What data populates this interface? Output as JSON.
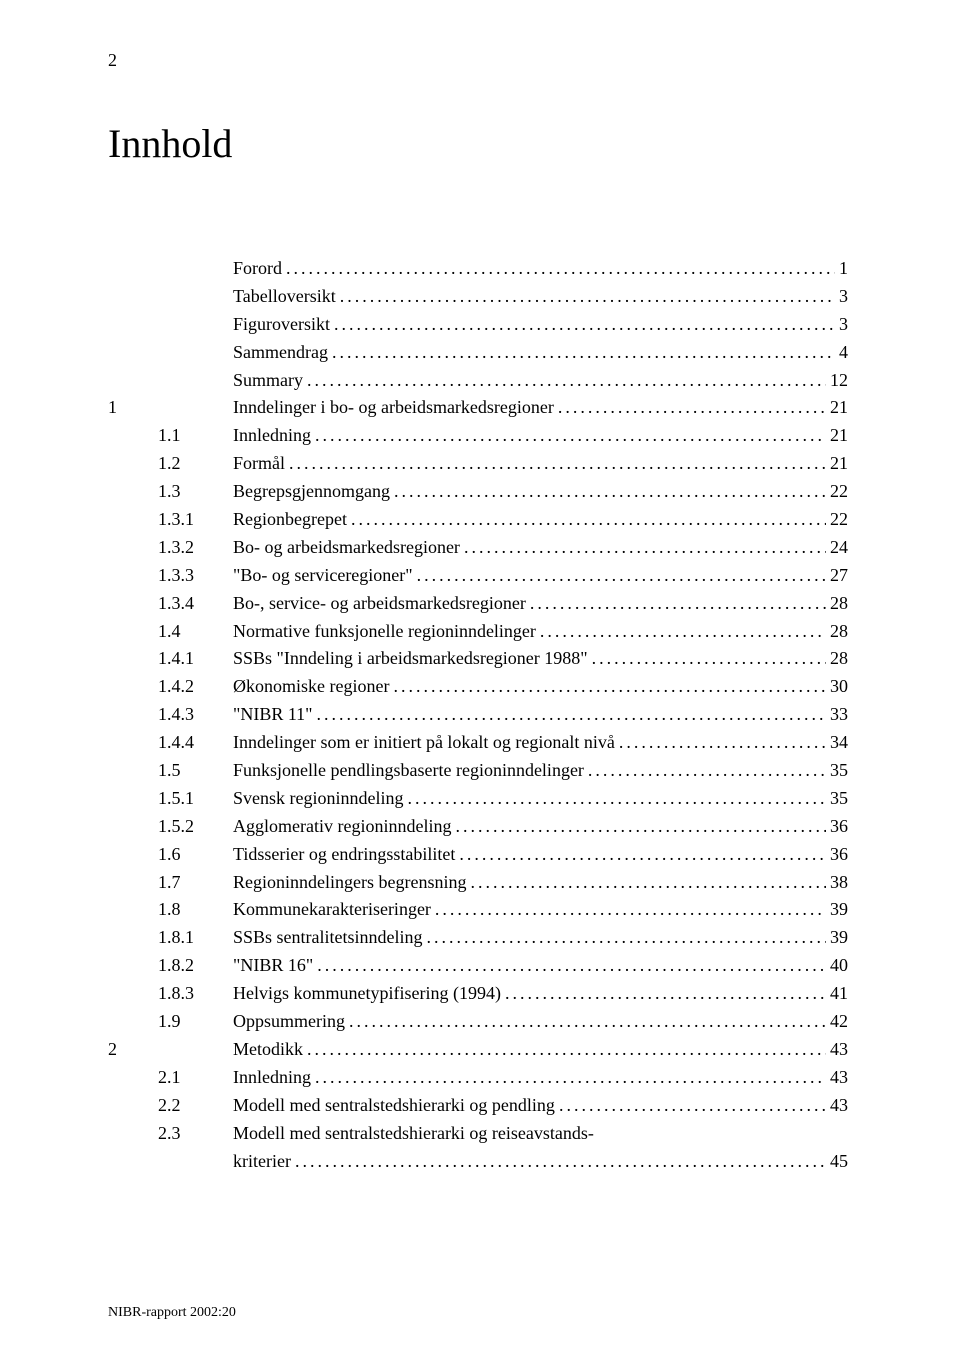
{
  "page_number_top": "2",
  "title": "Innhold",
  "footer": "NIBR-rapport 2002:20",
  "dots": "................................................................................................................",
  "toc": [
    {
      "level": 0,
      "num": "",
      "text": "Forord",
      "page": "1"
    },
    {
      "level": 0,
      "num": "",
      "text": "Tabelloversikt",
      "page": "3"
    },
    {
      "level": 0,
      "num": "",
      "text": "Figuroversikt",
      "page": "3"
    },
    {
      "level": 0,
      "num": "",
      "text": "Sammendrag",
      "page": "4"
    },
    {
      "level": 0,
      "num": "",
      "text": "Summary",
      "page": "12"
    },
    {
      "level": 1,
      "num": "1",
      "text": "Inndelinger i bo- og arbeidsmarkedsregioner",
      "page": "21"
    },
    {
      "level": 2,
      "num": "1.1",
      "text": "Innledning",
      "page": "21"
    },
    {
      "level": 2,
      "num": "1.2",
      "text": "Formål",
      "page": "21"
    },
    {
      "level": 2,
      "num": "1.3",
      "text": "Begrepsgjennomgang",
      "page": "22"
    },
    {
      "level": 3,
      "num": "1.3.1",
      "text": "Regionbegrepet",
      "page": "22"
    },
    {
      "level": 3,
      "num": "1.3.2",
      "text": "Bo- og arbeidsmarkedsregioner",
      "page": "24"
    },
    {
      "level": 3,
      "num": "1.3.3",
      "text": "\"Bo- og serviceregioner\"",
      "page": "27"
    },
    {
      "level": 3,
      "num": "1.3.4",
      "text": "Bo-, service- og arbeidsmarkedsregioner",
      "page": "28"
    },
    {
      "level": 2,
      "num": "1.4",
      "text": "Normative funksjonelle regioninndelinger",
      "page": "28"
    },
    {
      "level": 3,
      "num": "1.4.1",
      "text": "SSBs \"Inndeling i arbeidsmarkedsregioner 1988\"",
      "page": "28"
    },
    {
      "level": 3,
      "num": "1.4.2",
      "text": "Økonomiske regioner",
      "page": "30"
    },
    {
      "level": 3,
      "num": "1.4.3",
      "text": "\"NIBR 11\"",
      "page": "33"
    },
    {
      "level": 3,
      "num": "1.4.4",
      "text": "Inndelinger som er initiert på lokalt og regionalt nivå",
      "page": "34"
    },
    {
      "level": 2,
      "num": "1.5",
      "text": "Funksjonelle pendlingsbaserte regioninndelinger",
      "page": "35"
    },
    {
      "level": 3,
      "num": "1.5.1",
      "text": "Svensk regioninndeling",
      "page": "35"
    },
    {
      "level": 3,
      "num": "1.5.2",
      "text": "Agglomerativ regioninndeling",
      "page": "36"
    },
    {
      "level": 2,
      "num": "1.6",
      "text": "Tidsserier og endringsstabilitet",
      "page": "36"
    },
    {
      "level": 2,
      "num": "1.7",
      "text": "Regioninndelingers begrensning",
      "page": "38"
    },
    {
      "level": 2,
      "num": "1.8",
      "text": "Kommunekarakteriseringer",
      "page": "39"
    },
    {
      "level": 3,
      "num": "1.8.1",
      "text": "SSBs sentralitetsinndeling",
      "page": "39"
    },
    {
      "level": 3,
      "num": "1.8.2",
      "text": "\"NIBR 16\"",
      "page": "40"
    },
    {
      "level": 3,
      "num": "1.8.3",
      "text": "Helvigs kommunetypifisering (1994)",
      "page": "41"
    },
    {
      "level": 2,
      "num": "1.9",
      "text": "Oppsummering",
      "page": "42"
    },
    {
      "level": 1,
      "num": "2",
      "text": "Metodikk",
      "page": "43"
    },
    {
      "level": 2,
      "num": "2.1",
      "text": "Innledning",
      "page": "43"
    },
    {
      "level": 2,
      "num": "2.2",
      "text": "Modell med sentralstedshierarki og pendling",
      "page": "43"
    },
    {
      "level": 2,
      "num": "2.3",
      "text": "Modell med sentralstedshierarki og reiseavstands-",
      "page": "",
      "nolead": true
    },
    {
      "level": 2,
      "num": "",
      "text": "kriterier",
      "page": "45",
      "continuation": true
    }
  ]
}
